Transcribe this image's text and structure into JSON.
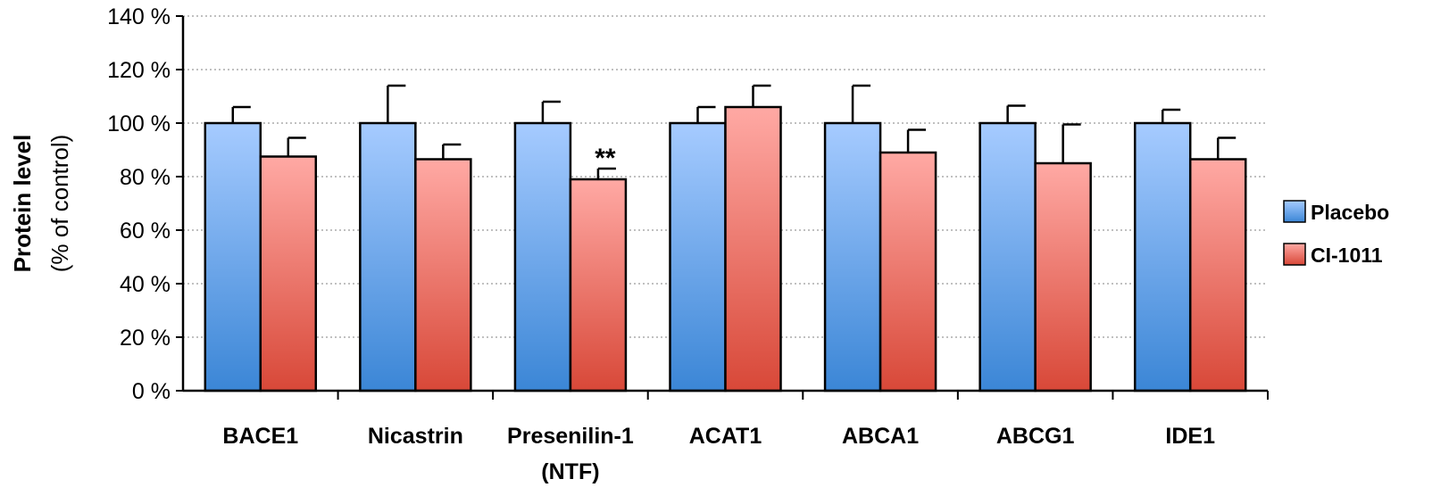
{
  "chart_data": {
    "type": "bar",
    "title": "",
    "ylabel_main": "Protein level",
    "ylabel_sub": "(% of control)",
    "xlabel": "",
    "ylim": [
      0,
      140
    ],
    "yticks": [
      0,
      20,
      40,
      60,
      80,
      100,
      120,
      140
    ],
    "ytick_labels": [
      "0 %",
      "20 %",
      "40 %",
      "60 %",
      "80 %",
      "100 %",
      "120 %",
      "140 %"
    ],
    "grid": "horizontal dotted",
    "categories": [
      [
        "BACE1"
      ],
      [
        "Nicastrin"
      ],
      [
        "Presenilin-1",
        "(NTF)"
      ],
      [
        "ACAT1"
      ],
      [
        "ABCA1"
      ],
      [
        "ABCG1"
      ],
      [
        "IDE1"
      ]
    ],
    "series": [
      {
        "name": "Placebo",
        "color_top": "#a6cbff",
        "color_bottom": "#3b86d6",
        "values": [
          100,
          100,
          100,
          100,
          100,
          100,
          100
        ],
        "errors": [
          6,
          14,
          8,
          6,
          14,
          6.5,
          5
        ]
      },
      {
        "name": "CI-1011",
        "color_top": "#ffa9a4",
        "color_bottom": "#d84838",
        "values": [
          87.5,
          86.5,
          79,
          106,
          89,
          85,
          86.5
        ],
        "errors": [
          7,
          5.5,
          4,
          8,
          8.5,
          14.5,
          8
        ]
      }
    ],
    "annotations": [
      {
        "category_index": 2,
        "series_index": 1,
        "text": "**"
      }
    ],
    "legend_position": "right"
  }
}
